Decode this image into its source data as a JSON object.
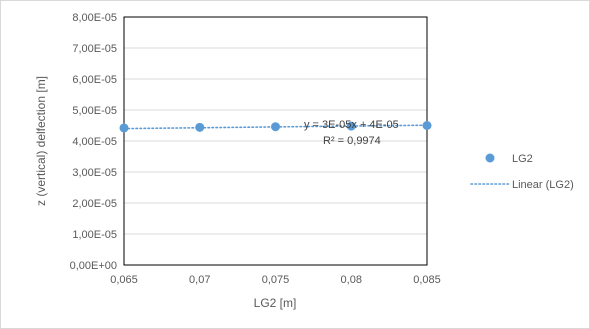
{
  "chart_data": {
    "type": "scatter",
    "title": "",
    "xlabel": "LG2 [m]",
    "ylabel": "z (vertical) delfection [m]",
    "xlim": [
      0.065,
      0.085
    ],
    "ylim": [
      0,
      8e-05
    ],
    "x_ticks": [
      0.065,
      0.07,
      0.075,
      0.08,
      0.085
    ],
    "x_tick_labels": [
      "0,065",
      "0,07",
      "0,075",
      "0,08",
      "0,085"
    ],
    "y_ticks": [
      0,
      1e-05,
      2e-05,
      3e-05,
      4e-05,
      5e-05,
      6e-05,
      7e-05,
      8e-05
    ],
    "y_tick_labels": [
      "0,00E+00",
      "1,00E-05",
      "2,00E-05",
      "3,00E-05",
      "4,00E-05",
      "5,00E-05",
      "6,00E-05",
      "7,00E-05",
      "8,00E-05"
    ],
    "grid": true,
    "legend_position": "right",
    "series": [
      {
        "name": "LG2",
        "x": [
          0.065,
          0.07,
          0.075,
          0.08,
          0.085
        ],
        "y": [
          4.42e-05,
          4.44e-05,
          4.46e-05,
          4.48e-05,
          4.5e-05
        ],
        "color": "#5b9bd5"
      }
    ],
    "trendline": {
      "name": "Linear (LG2)",
      "slope": 3e-05,
      "intercept": 4e-05,
      "y_at_xmin": 4.4e-05,
      "y_at_xmax": 4.51e-05,
      "color": "#5b9bd5",
      "style": "dotted",
      "equation": "y = 3E-05x + 4E-05",
      "r_squared": "R² = 0,9974"
    }
  }
}
